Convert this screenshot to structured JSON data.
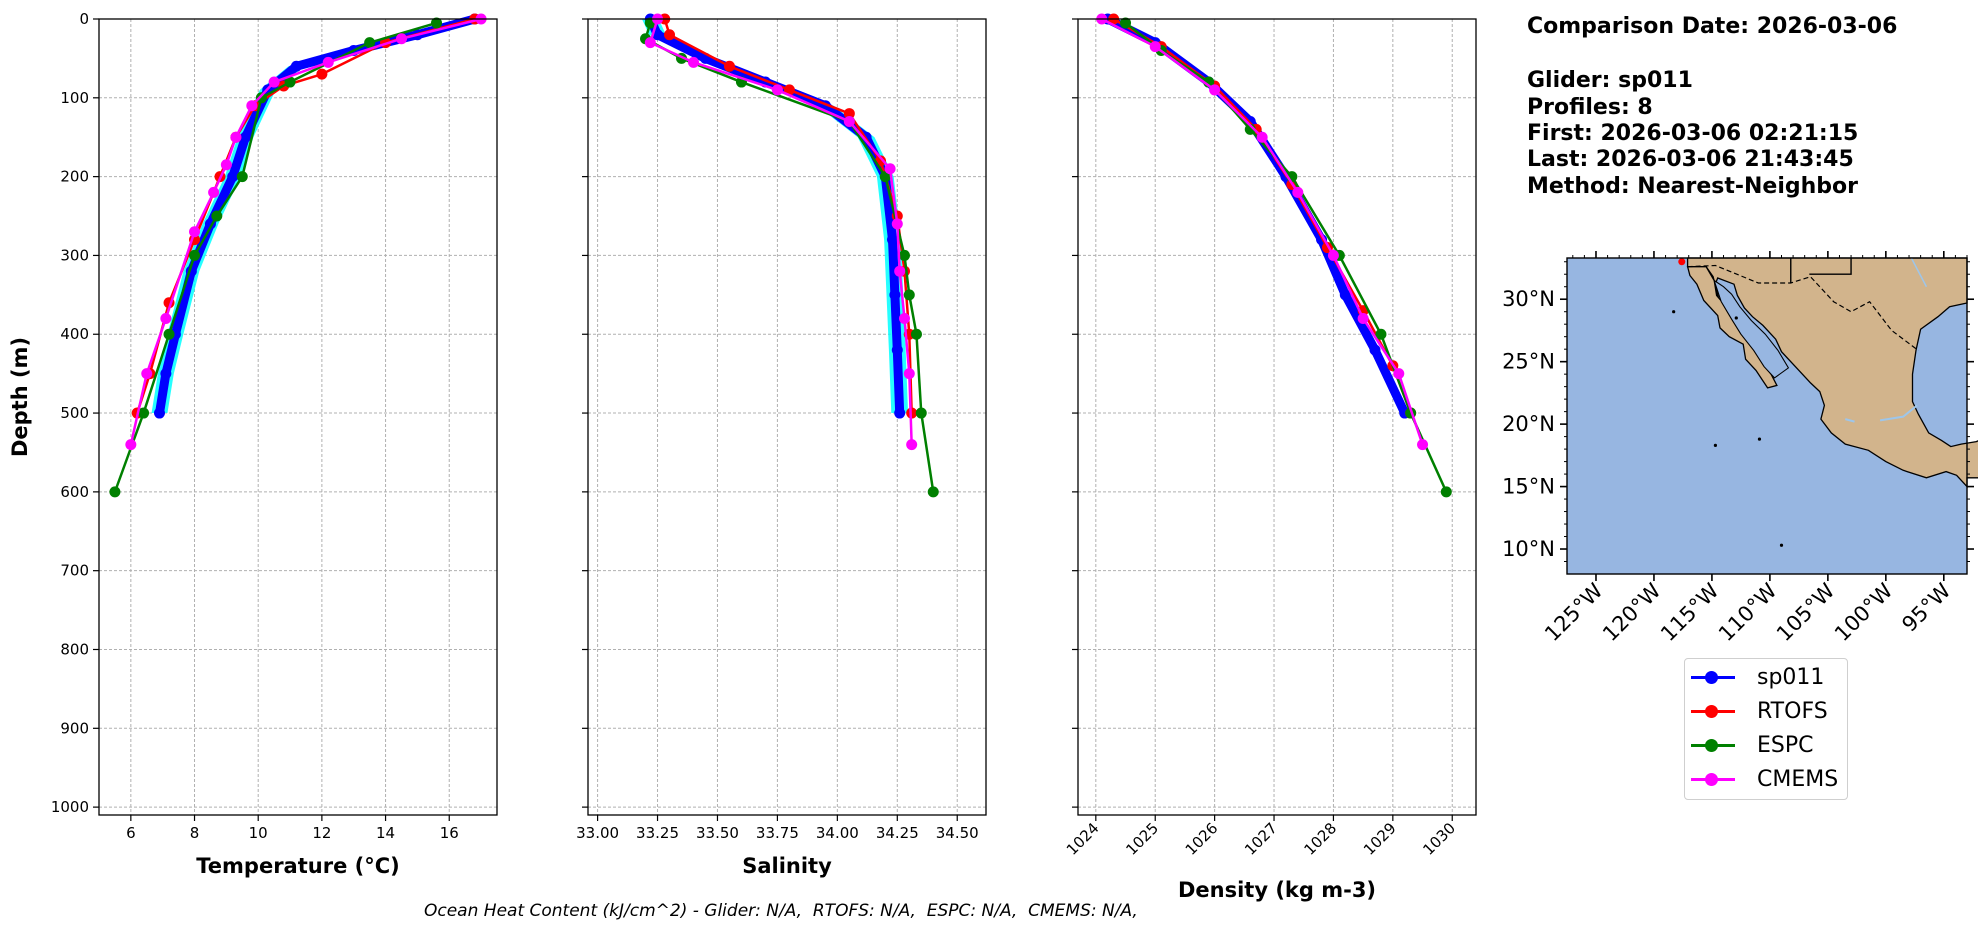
{
  "info": {
    "comparison_date": "Comparison Date: 2026-03-06",
    "glider": "Glider: sp011",
    "profiles": "Profiles: 8",
    "first": "First: 2026-03-06 02:21:15",
    "last": "Last: 2026-03-06 21:43:45",
    "method": "Method: Nearest-Neighbor"
  },
  "footer": "Ocean Heat Content (kJ/cm^2) - Glider: N/A,  RTOFS: N/A,  ESPC: N/A,  CMEMS: N/A,",
  "colors": {
    "sp011": "#0000ff",
    "RTOFS": "#ff0000",
    "ESPC": "#008000",
    "CMEMS": "#ff00ff",
    "glider_spread": "#00ffff",
    "ocean": "#97b6e1",
    "land": "#d2b48c"
  },
  "legend": [
    {
      "name": "sp011",
      "color": "#0000ff"
    },
    {
      "name": "RTOFS",
      "color": "#ff0000"
    },
    {
      "name": "ESPC",
      "color": "#008000"
    },
    {
      "name": "CMEMS",
      "color": "#ff00ff"
    }
  ],
  "chart_data": [
    {
      "type": "line",
      "xlabel": "Temperature (°C)",
      "ylabel": "Depth (m)",
      "xlim": [
        5,
        17.5
      ],
      "ylim": [
        1010,
        0
      ],
      "xticks": [
        6,
        8,
        10,
        12,
        14,
        16
      ],
      "yticks": [
        0,
        100,
        200,
        300,
        400,
        500,
        600,
        700,
        800,
        900,
        1000
      ],
      "grid": true,
      "series": [
        {
          "name": "sp011",
          "x": [
            16.8,
            15.0,
            13.0,
            11.2,
            10.3,
            9.6,
            9.2,
            8.5,
            7.9,
            7.4,
            7.1,
            6.9
          ],
          "y": [
            0,
            20,
            40,
            60,
            90,
            150,
            200,
            260,
            320,
            400,
            450,
            500
          ]
        },
        {
          "name": "RTOFS",
          "x": [
            16.8,
            14.0,
            12.0,
            10.8,
            9.9,
            9.3,
            8.8,
            8.0,
            7.2,
            6.6,
            6.2
          ],
          "y": [
            0,
            30,
            70,
            85,
            110,
            150,
            200,
            280,
            360,
            450,
            500
          ]
        },
        {
          "name": "ESPC",
          "x": [
            15.6,
            13.5,
            11.0,
            10.1,
            9.5,
            8.7,
            8.0,
            7.2,
            6.4,
            5.5
          ],
          "y": [
            5,
            30,
            80,
            100,
            200,
            250,
            300,
            400,
            500,
            600
          ]
        },
        {
          "name": "CMEMS",
          "x": [
            17.0,
            14.5,
            12.2,
            10.5,
            9.8,
            9.3,
            9.0,
            8.6,
            8.0,
            7.1,
            6.5,
            6.0
          ],
          "y": [
            0,
            25,
            55,
            80,
            110,
            150,
            185,
            220,
            270,
            380,
            450,
            540
          ]
        }
      ]
    },
    {
      "type": "line",
      "xlabel": "Salinity",
      "xlim": [
        32.96,
        34.62
      ],
      "ylim": [
        1010,
        0
      ],
      "xticks": [
        33.0,
        33.25,
        33.5,
        33.75,
        34.0,
        34.25,
        34.5
      ],
      "grid": true,
      "series": [
        {
          "name": "sp011",
          "x": [
            33.22,
            33.25,
            33.45,
            33.7,
            33.95,
            34.12,
            34.2,
            34.23,
            34.24,
            34.25,
            34.26
          ],
          "y": [
            0,
            20,
            50,
            80,
            110,
            150,
            200,
            280,
            350,
            420,
            500
          ]
        },
        {
          "name": "RTOFS",
          "x": [
            33.28,
            33.3,
            33.55,
            33.8,
            34.05,
            34.18,
            34.25,
            34.28,
            34.3,
            34.31
          ],
          "y": [
            0,
            20,
            60,
            90,
            120,
            180,
            250,
            320,
            400,
            500
          ]
        },
        {
          "name": "ESPC",
          "x": [
            33.22,
            33.2,
            33.35,
            33.6,
            34.05,
            34.2,
            34.28,
            34.3,
            34.33,
            34.35,
            34.4
          ],
          "y": [
            5,
            25,
            50,
            80,
            130,
            200,
            300,
            350,
            400,
            500,
            600
          ]
        },
        {
          "name": "CMEMS",
          "x": [
            33.25,
            33.22,
            33.4,
            33.75,
            34.05,
            34.22,
            34.25,
            34.26,
            34.28,
            34.3,
            34.31
          ],
          "y": [
            0,
            30,
            55,
            90,
            130,
            190,
            260,
            320,
            380,
            450,
            540
          ]
        }
      ]
    },
    {
      "type": "line",
      "xlabel": "Density (kg m-3)",
      "xlim": [
        1023.7,
        1030.4
      ],
      "ylim": [
        1010,
        0
      ],
      "xticks": [
        1024,
        1025,
        1026,
        1027,
        1028,
        1029,
        1030
      ],
      "grid": true,
      "series": [
        {
          "name": "sp011",
          "x": [
            1024.2,
            1025.0,
            1025.9,
            1026.6,
            1027.2,
            1027.8,
            1028.2,
            1028.7,
            1029.2
          ],
          "y": [
            0,
            30,
            80,
            130,
            200,
            280,
            350,
            420,
            500
          ]
        },
        {
          "name": "RTOFS",
          "x": [
            1024.3,
            1025.1,
            1026.0,
            1026.7,
            1027.3,
            1027.9,
            1028.5,
            1029.0,
            1029.3
          ],
          "y": [
            0,
            35,
            85,
            140,
            210,
            290,
            370,
            440,
            500
          ]
        },
        {
          "name": "ESPC",
          "x": [
            1024.5,
            1025.1,
            1025.9,
            1026.6,
            1027.3,
            1028.1,
            1028.8,
            1029.3,
            1029.9
          ],
          "y": [
            5,
            40,
            80,
            140,
            200,
            300,
            400,
            500,
            600
          ]
        },
        {
          "name": "CMEMS",
          "x": [
            1024.1,
            1025.0,
            1026.0,
            1026.8,
            1027.4,
            1028.0,
            1028.5,
            1029.1,
            1029.5
          ],
          "y": [
            0,
            35,
            90,
            150,
            220,
            300,
            380,
            450,
            540
          ]
        }
      ]
    }
  ],
  "map": {
    "lat_ticks": [
      "10°N",
      "15°N",
      "20°N",
      "25°N",
      "30°N"
    ],
    "lon_ticks": [
      "125°W",
      "120°W",
      "115°W",
      "110°W",
      "105°W",
      "100°W",
      "95°W"
    ]
  }
}
